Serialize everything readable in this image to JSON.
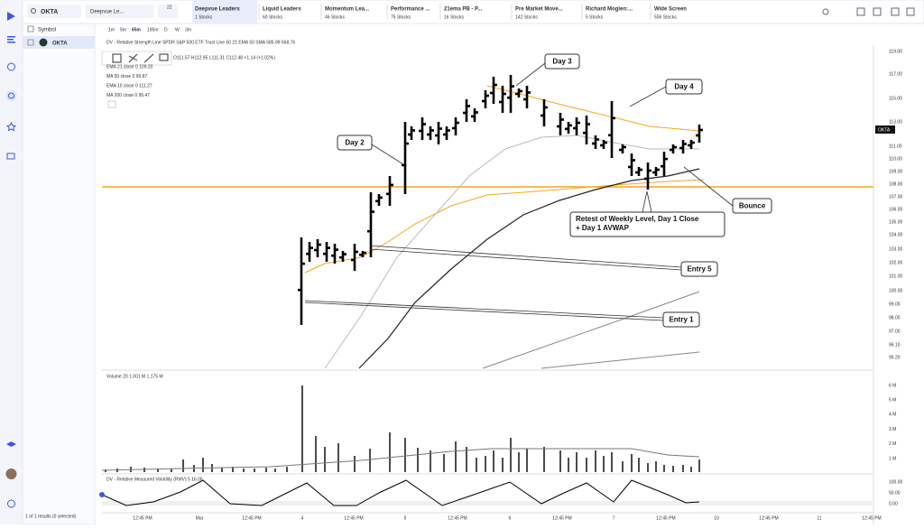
{
  "search": {
    "symbol": "OKTA",
    "tab": "Deepvue Le...",
    "badge": "22"
  },
  "screens": [
    {
      "name": "Deepvue Leaders",
      "count": "1 Stocks"
    },
    {
      "name": "Liquid Leaders",
      "count": "60 Stocks"
    },
    {
      "name": "Momentum Lea...",
      "count": "46 Stocks"
    },
    {
      "name": "Performance ...",
      "count": "75 Stocks"
    },
    {
      "name": "21ema PB - P...",
      "count": "16 Stocks"
    },
    {
      "name": "Pre Market Move...",
      "count": "142 Stocks"
    },
    {
      "name": "Richard Moglen:...",
      "count": "5 Stocks"
    },
    {
      "name": "Wide Screen",
      "count": "506 Stocks"
    }
  ],
  "watchlist": {
    "header": "Symbol",
    "rows": [
      "OKTA"
    ],
    "footer": "1 of 1 results (0 selected)"
  },
  "toolbar": {
    "timeframes": [
      "1m",
      "5m",
      "65m",
      "195m",
      "D",
      "W",
      "3m"
    ]
  },
  "chart": {
    "rs_line": "DV - Relative Strength Line SPDR S&P 500 ETF Trust Line 50 21 EMA 50 SMA 585.99 568.76",
    "ohlc": "O111.57 H112.95 L111.31 C112.48 +1.14 (+1.02%)",
    "legend": [
      "EMA 21 close 0 109.20",
      "MA 50 close 0 99.87",
      "EMA 10 close 0 111.27",
      "MA 200 close 0 95.47"
    ],
    "price_label": "OKTA",
    "price_ticks": [
      "119.00",
      "117.00",
      "115.00",
      "113.00",
      "111.00",
      "110.00",
      "109.00",
      "108.00",
      "107.00",
      "106.00",
      "105.00",
      "104.00",
      "103.00",
      "102.00",
      "101.00",
      "100.00",
      "99.00",
      "98.00",
      "97.00",
      "96.10",
      "95.20"
    ],
    "volume_legend": "Volume 20 1.001 M 1.175 M",
    "volume_ticks": [
      "6 M",
      "5 M",
      "4 M",
      "3 M",
      "2 M",
      "1 M"
    ],
    "rmv_legend": "DV - Relative Measured Volatility (RMV) 5 16.06",
    "rmv_ticks": [
      "100.00",
      "50.00",
      "0.00"
    ],
    "time_ticks": [
      "12:45 PM",
      "Mar",
      "12:45 PM",
      "4",
      "12:45 PM",
      "5",
      "12:45 PM",
      "6",
      "12:45 PM",
      "7",
      "12:45 PM",
      "10",
      "12:45 PM",
      "11",
      "12:45 PM"
    ],
    "annotations": [
      {
        "text": [
          "Day 3"
        ]
      },
      {
        "text": [
          "Day 4"
        ]
      },
      {
        "text": [
          "Day 2"
        ]
      },
      {
        "text": [
          "Bounce"
        ]
      },
      {
        "text": [
          "Retest of Weekly Level, Day 1 Close",
          "+ Day 1 AVWAP"
        ]
      },
      {
        "text": [
          "Entry 5"
        ]
      },
      {
        "text": [
          "Entry 1"
        ]
      }
    ]
  }
}
